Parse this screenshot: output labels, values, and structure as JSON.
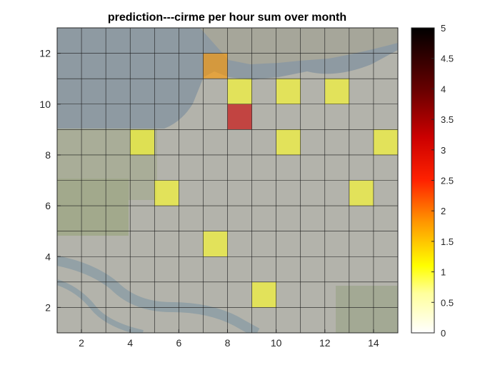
{
  "chart_data": {
    "type": "heatmap",
    "title": "prediction---cirme per hour sum over month",
    "xlabel": "",
    "ylabel": "",
    "xlim": [
      1,
      15
    ],
    "ylim": [
      1,
      13
    ],
    "x_ticks": [
      2,
      4,
      6,
      8,
      10,
      12,
      14
    ],
    "y_ticks": [
      2,
      4,
      6,
      8,
      10,
      12
    ],
    "grid": true,
    "cell_size": 1,
    "background": "satellite map imagery (water at top-left, city grid below)",
    "colorbar": {
      "colormap": "hot (reversed: white=0, black=5)",
      "limits": [
        0,
        5
      ],
      "ticks": [
        "0",
        "0.5",
        "1",
        "1.5",
        "2",
        "2.5",
        "3",
        "3.5",
        "4",
        "4.5",
        "5"
      ],
      "placement": "right"
    },
    "cells": [
      {
        "x": 7.5,
        "y": 11.5,
        "value": 2.0
      },
      {
        "x": 8.5,
        "y": 10.5,
        "value": 1.05
      },
      {
        "x": 10.5,
        "y": 10.5,
        "value": 1.05
      },
      {
        "x": 12.5,
        "y": 10.5,
        "value": 1.05
      },
      {
        "x": 8.5,
        "y": 9.5,
        "value": 3.5
      },
      {
        "x": 4.5,
        "y": 8.5,
        "value": 1.05
      },
      {
        "x": 10.5,
        "y": 8.5,
        "value": 1.05
      },
      {
        "x": 14.5,
        "y": 8.5,
        "value": 1.05
      },
      {
        "x": 5.5,
        "y": 6.5,
        "value": 1.05
      },
      {
        "x": 13.5,
        "y": 6.5,
        "value": 1.05
      },
      {
        "x": 7.5,
        "y": 4.5,
        "value": 1.05
      },
      {
        "x": 9.5,
        "y": 2.5,
        "value": 1.05
      }
    ]
  }
}
